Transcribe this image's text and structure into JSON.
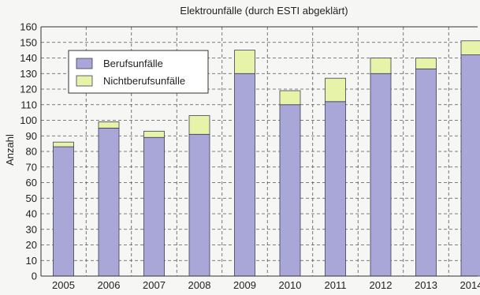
{
  "chart_data": {
    "type": "bar",
    "stacked": true,
    "title": "Elektrounfälle (durch ESTI abgeklärt)",
    "ylabel": "Anzahl",
    "xlabel": "",
    "categories": [
      "2005",
      "2006",
      "2007",
      "2008",
      "2009",
      "2010",
      "2011",
      "2012",
      "2013",
      "2014"
    ],
    "series": [
      {
        "name": "Berufsunfälle",
        "color": "#a9a6d8",
        "values": [
          83,
          95,
          89,
          91,
          130,
          110,
          112,
          130,
          133,
          142
        ]
      },
      {
        "name": "Nichtberufsunfälle",
        "color": "#e6f3a8",
        "values": [
          3,
          4,
          4,
          12,
          15,
          9,
          15,
          10,
          7,
          9
        ]
      }
    ],
    "ylim": [
      0,
      160
    ],
    "yticks": [
      0,
      10,
      20,
      30,
      40,
      50,
      60,
      70,
      80,
      90,
      100,
      110,
      120,
      130,
      140,
      150,
      160
    ],
    "grid": true,
    "legend_position": "top-left"
  }
}
